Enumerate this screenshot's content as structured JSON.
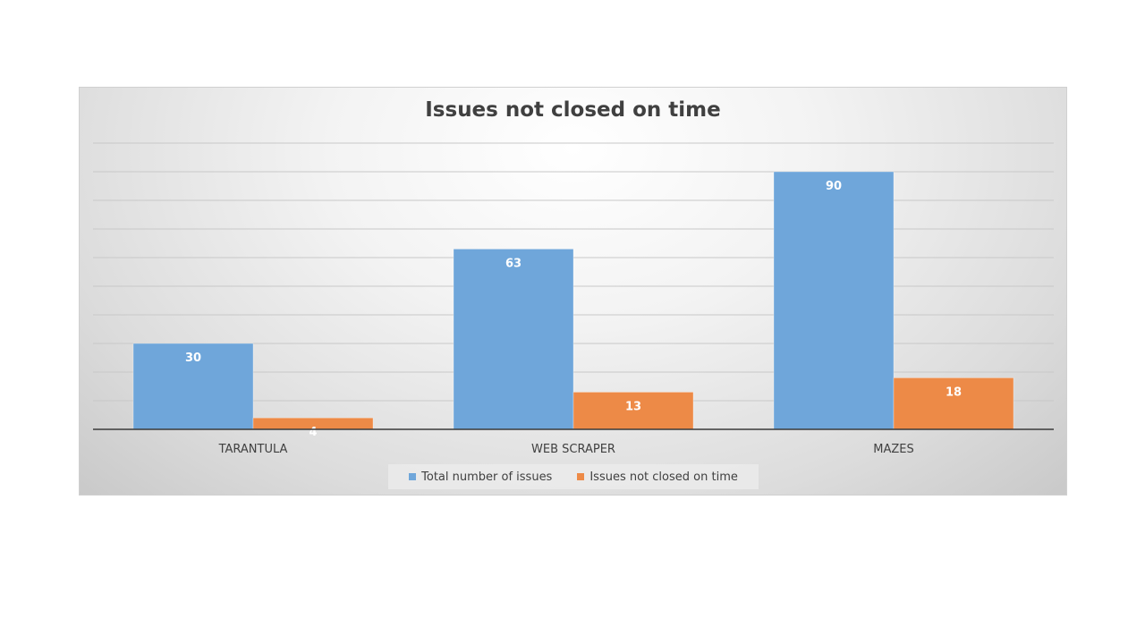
{
  "chart_data": {
    "type": "bar",
    "title": "Issues not closed on time",
    "categories": [
      "TARANTULA",
      "WEB SCRAPER",
      "MAZES"
    ],
    "series": [
      {
        "name": "Total number of issues",
        "values": [
          30,
          63,
          90
        ],
        "color": "#6fa6da"
      },
      {
        "name": "Issues not closed on time",
        "values": [
          4,
          13,
          18
        ],
        "color": "#ed8a47"
      }
    ],
    "ylim": [
      0,
      100
    ],
    "grid": true,
    "legend": "bottom",
    "data_labels": true
  }
}
